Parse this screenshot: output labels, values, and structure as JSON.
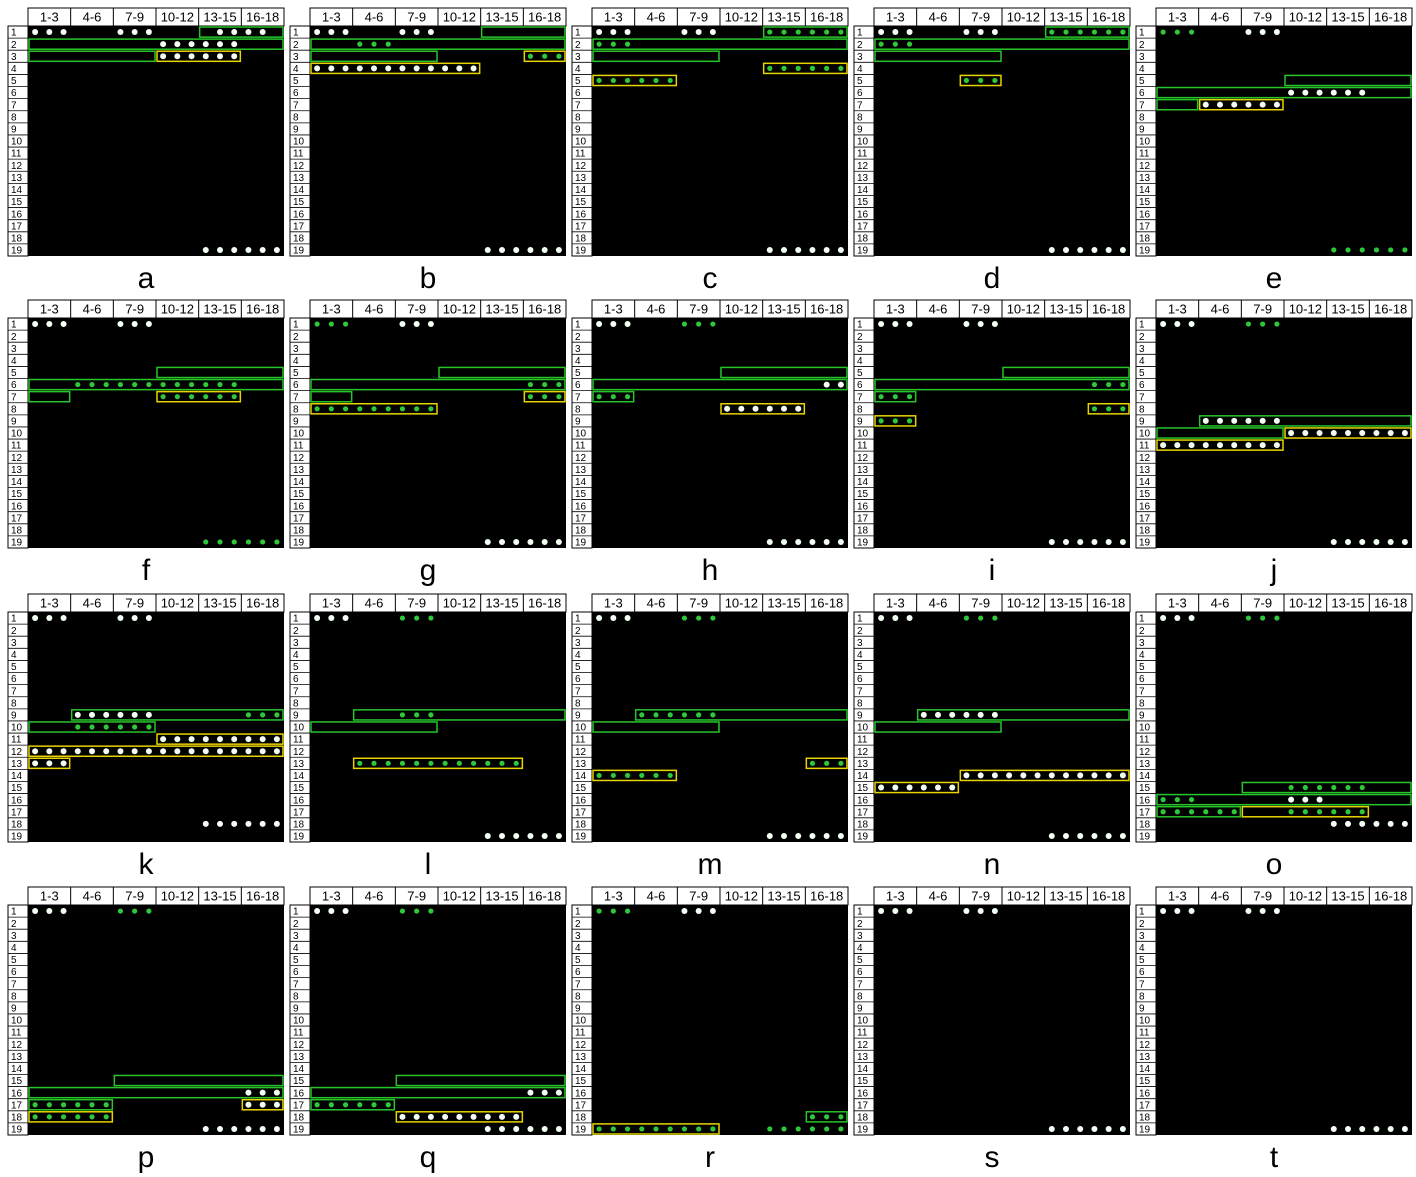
{
  "column_headers": [
    "1-3",
    "4-6",
    "7-9",
    "10-12",
    "13-15",
    "16-18"
  ],
  "row_labels": [
    "1",
    "2",
    "3",
    "4",
    "5",
    "6",
    "7",
    "8",
    "9",
    "10",
    "11",
    "12",
    "13",
    "14",
    "15",
    "16",
    "17",
    "18",
    "19"
  ],
  "panels": [
    {
      "label": "a"
    },
    {
      "label": "b"
    },
    {
      "label": "c"
    },
    {
      "label": "d"
    },
    {
      "label": "e"
    },
    {
      "label": "f"
    },
    {
      "label": "g"
    },
    {
      "label": "h"
    },
    {
      "label": "i"
    },
    {
      "label": "j"
    },
    {
      "label": "k"
    },
    {
      "label": "l"
    },
    {
      "label": "m"
    },
    {
      "label": "n"
    },
    {
      "label": "o"
    },
    {
      "label": "p"
    },
    {
      "label": "q"
    },
    {
      "label": "r"
    },
    {
      "label": "s"
    },
    {
      "label": "t"
    }
  ]
}
